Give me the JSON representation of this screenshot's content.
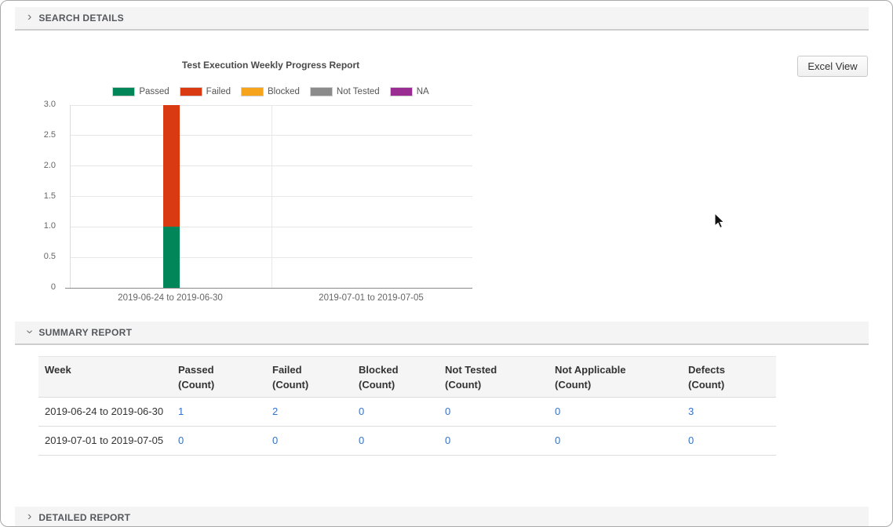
{
  "sections": {
    "search_details": {
      "label": "SEARCH DETAILS",
      "state": "collapsed"
    },
    "summary_report": {
      "label": "SUMMARY REPORT",
      "state": "expanded"
    },
    "detailed_report": {
      "label": "DETAILED REPORT",
      "state": "collapsed"
    }
  },
  "toolbar": {
    "excel_view_label": "Excel View"
  },
  "chart_data": {
    "type": "bar",
    "stacked": true,
    "title": "Test Execution Weekly Progress Report",
    "categories": [
      "2019-06-24 to 2019-06-30",
      "2019-07-01 to 2019-07-05"
    ],
    "series": [
      {
        "name": "Passed",
        "color": "#008658",
        "values": [
          1,
          0
        ]
      },
      {
        "name": "Failed",
        "color": "#d93a12",
        "values": [
          2,
          0
        ]
      },
      {
        "name": "Blocked",
        "color": "#f5a41c",
        "values": [
          0,
          0
        ]
      },
      {
        "name": "Not Tested",
        "color": "#8b8b8b",
        "values": [
          0,
          0
        ]
      },
      {
        "name": "NA",
        "color": "#9a2d91",
        "values": [
          0,
          0
        ]
      }
    ],
    "ylim": [
      0,
      3
    ],
    "y_ticks": [
      0,
      0.5,
      1,
      1.5,
      2,
      2.5,
      3
    ],
    "y_tick_labels": [
      "0",
      "0.5",
      "1.0",
      "1.5",
      "2.0",
      "2.5",
      "3.0"
    ],
    "xlabel": "",
    "ylabel": "",
    "grid": true,
    "legend_position": "top"
  },
  "summary_table": {
    "columns": [
      {
        "key": "week",
        "label": "Week",
        "sublabel": ""
      },
      {
        "key": "passed",
        "label": "Passed",
        "sublabel": "(Count)"
      },
      {
        "key": "failed",
        "label": "Failed",
        "sublabel": "(Count)"
      },
      {
        "key": "blocked",
        "label": "Blocked",
        "sublabel": "(Count)"
      },
      {
        "key": "not_tested",
        "label": "Not Tested",
        "sublabel": "(Count)"
      },
      {
        "key": "not_applicable",
        "label": "Not Applicable",
        "sublabel": "(Count)"
      },
      {
        "key": "defects",
        "label": "Defects",
        "sublabel": "(Count)"
      }
    ],
    "rows": [
      {
        "week": "2019-06-24 to 2019-06-30",
        "passed": "1",
        "failed": "2",
        "blocked": "0",
        "not_tested": "0",
        "not_applicable": "0",
        "defects": "3"
      },
      {
        "week": "2019-07-01 to 2019-07-05",
        "passed": "0",
        "failed": "0",
        "blocked": "0",
        "not_tested": "0",
        "not_applicable": "0",
        "defects": "0"
      }
    ],
    "link_color": "#3473c7"
  }
}
